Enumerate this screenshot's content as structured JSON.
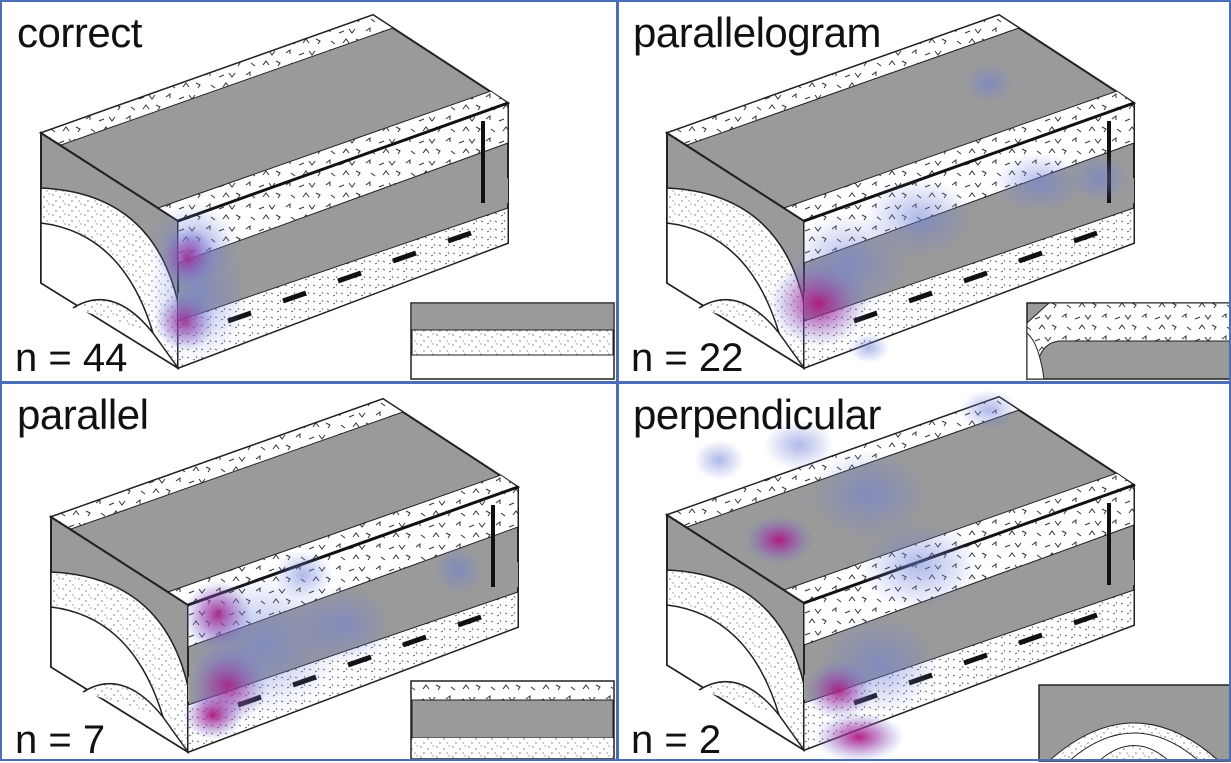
{
  "panels": [
    {
      "title": "correct",
      "count": "n = 44"
    },
    {
      "title": "parallelogram",
      "count": "n = 22"
    },
    {
      "title": "parallel",
      "count": "n = 7"
    },
    {
      "title": "perpendicular",
      "count": "n = 2"
    }
  ],
  "colors": {
    "grid_line": "#4a6fb8",
    "gray_layer": "#9a9a9a",
    "heat_blue": "#6f7fd8",
    "heat_magenta": "#b0157a"
  }
}
